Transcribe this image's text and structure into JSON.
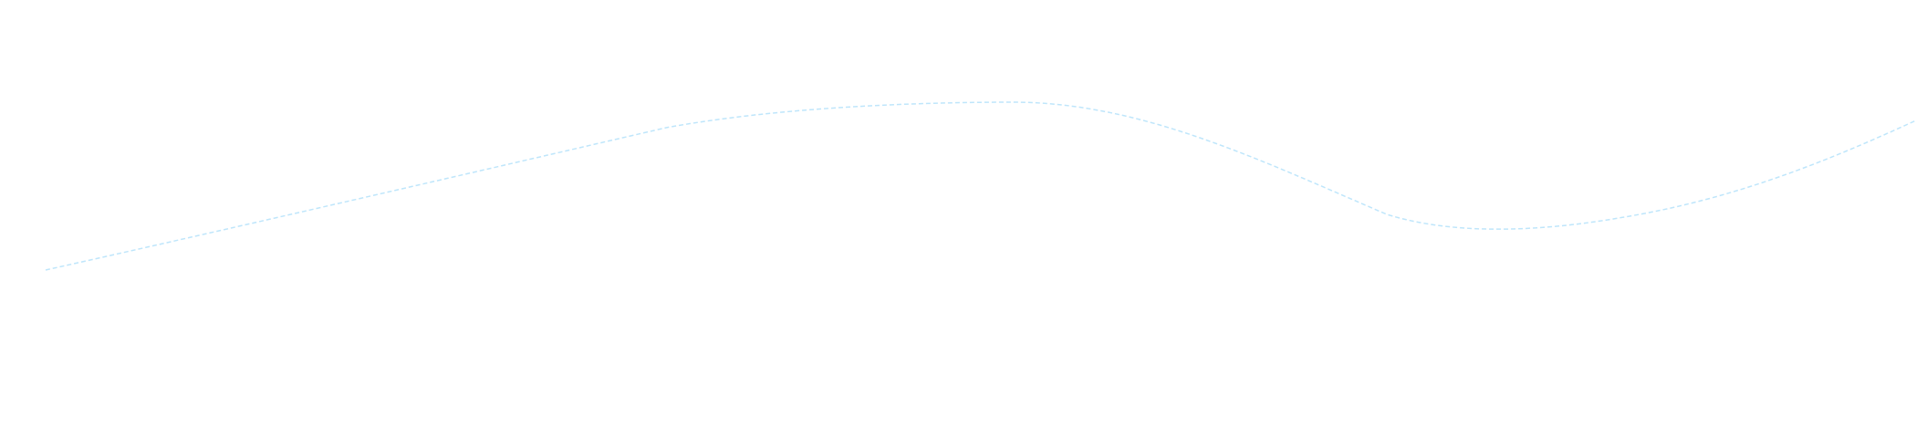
{
  "decoration": {
    "line_color": "#bfe6fb"
  }
}
